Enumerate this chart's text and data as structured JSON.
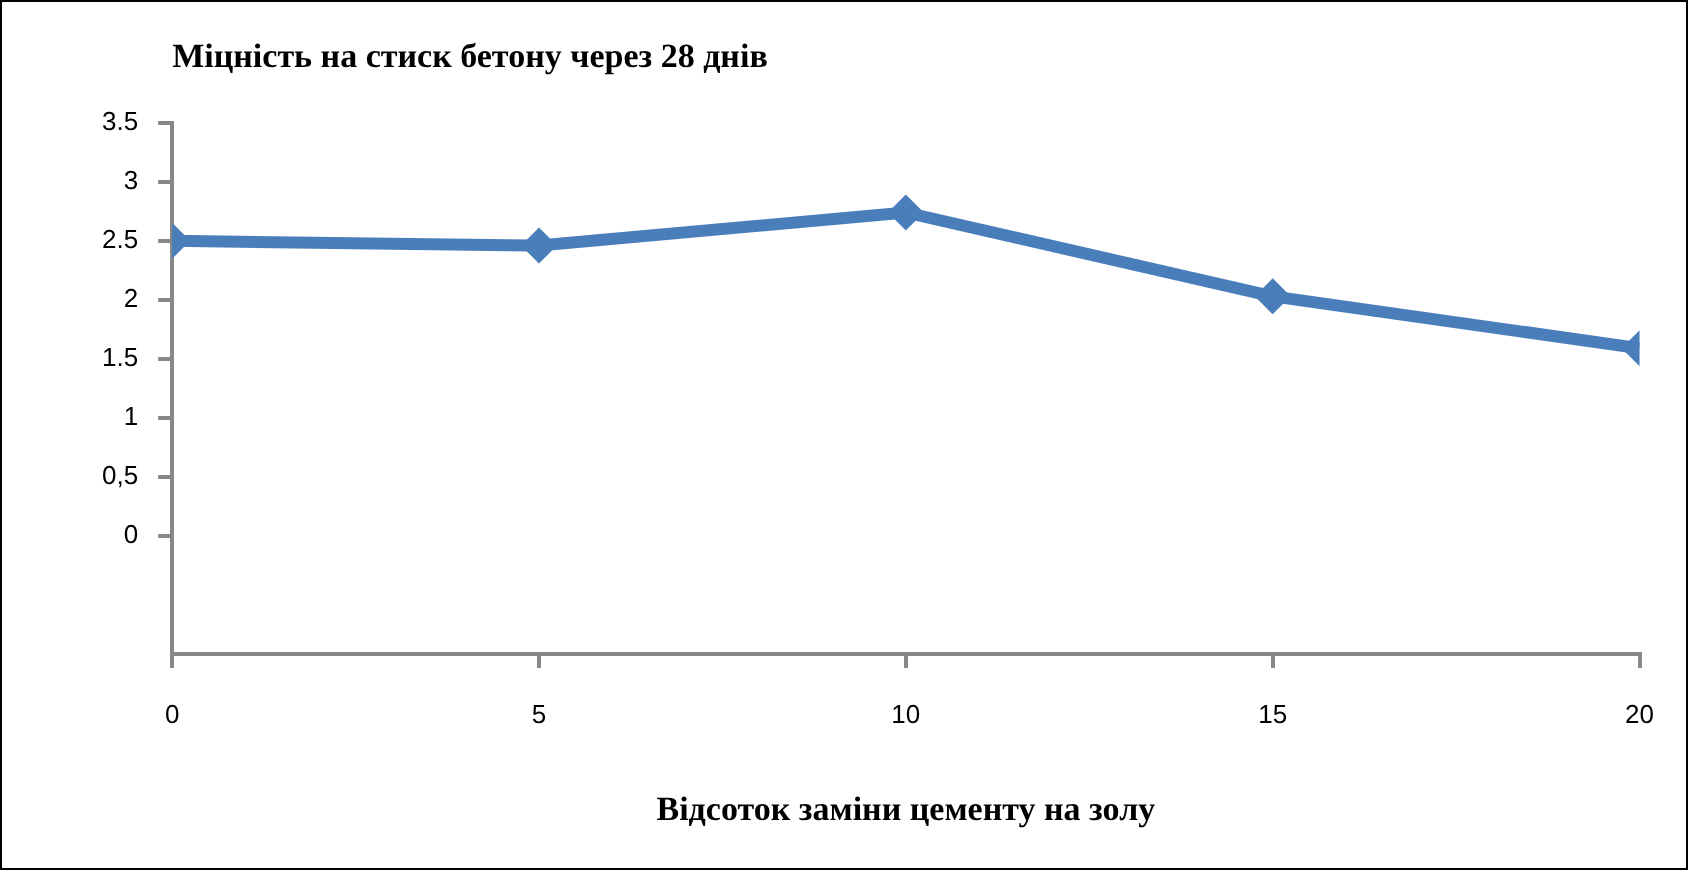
{
  "chart_data": {
    "type": "line",
    "title": "Міцність на стиск бетону через 28 днів",
    "xlabel": "Відсоток заміни цементу на золу",
    "x": [
      0,
      5,
      10,
      15,
      20
    ],
    "series": [
      {
        "color": "#4a7ebb",
        "values": [
          2.5,
          2.46,
          2.74,
          2.03,
          1.59
        ]
      }
    ],
    "xlim": [
      0,
      20
    ],
    "xticks": [
      0,
      5,
      10,
      15,
      20
    ],
    "ylim": [
      -1,
      3.5
    ],
    "yticks": [
      0,
      {
        "value": 0.5,
        "label": "0,5"
      },
      1,
      1.5,
      2,
      2.5,
      3,
      3.5
    ],
    "grid": false,
    "legend": false,
    "marker": "diamond",
    "line_style": "solid"
  }
}
